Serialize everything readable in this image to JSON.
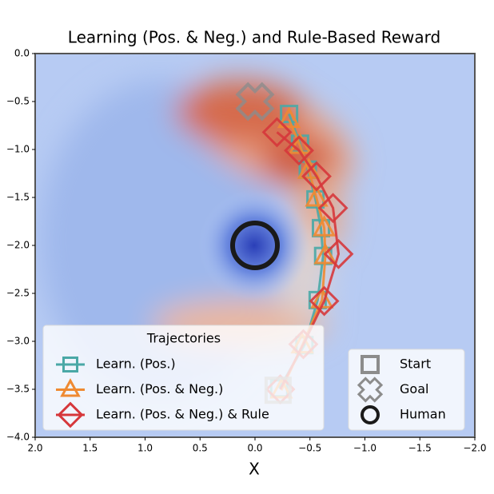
{
  "chart_data": {
    "type": "line",
    "title": "Learning (Pos. & Neg.) and Rule-Based Reward",
    "xlabel": "X",
    "xlim": [
      2,
      -2
    ],
    "ylim": [
      -4,
      0
    ],
    "xticks": [
      {
        "value": 2,
        "label": "2.0"
      },
      {
        "value": 1.5,
        "label": "1.5"
      },
      {
        "value": 1,
        "label": "1.0"
      },
      {
        "value": 0.5,
        "label": "0.5"
      },
      {
        "value": 0,
        "label": "0.0"
      },
      {
        "value": -0.5,
        "label": "−0.5"
      },
      {
        "value": -1,
        "label": "−1.0"
      },
      {
        "value": -1.5,
        "label": "−1.5"
      },
      {
        "value": -2,
        "label": "−2.0"
      }
    ],
    "yticks": [
      {
        "value": 0,
        "label": "0.0"
      },
      {
        "value": -0.5,
        "label": "−0.5"
      },
      {
        "value": -1,
        "label": "−1.0"
      },
      {
        "value": -1.5,
        "label": "−1.5"
      },
      {
        "value": -2,
        "label": "−2.0"
      },
      {
        "value": -2.5,
        "label": "−2.5"
      },
      {
        "value": -3,
        "label": "−3.0"
      },
      {
        "value": -3.5,
        "label": "−3.5"
      },
      {
        "value": -4,
        "label": "−4.0"
      }
    ],
    "legend_title": "Trajectories",
    "legend": "lower left",
    "series": [
      {
        "name": "Learn. (Pos.)",
        "color": "#4aa8a6",
        "marker": "square",
        "x": [
          -0.31,
          -0.41,
          -0.48,
          -0.55,
          -0.6,
          -0.62,
          -0.57,
          -0.45,
          -0.22
        ],
        "y": [
          -0.63,
          -0.94,
          -1.21,
          -1.52,
          -1.82,
          -2.11,
          -2.57,
          -3.04,
          -3.49
        ]
      },
      {
        "name": "Learn. (Pos. & Neg.)",
        "color": "#ef8a32",
        "marker": "triangle",
        "x": [
          -0.31,
          -0.41,
          -0.49,
          -0.56,
          -0.63,
          -0.64,
          -0.61,
          -0.43,
          -0.24
        ],
        "y": [
          -0.69,
          -0.96,
          -1.22,
          -1.51,
          -1.82,
          -2.11,
          -2.57,
          -3.04,
          -3.51
        ]
      },
      {
        "name": "Learn. (Pos. & Neg.) & Rule",
        "color": "#d6373b",
        "marker": "diamond",
        "x": [
          -0.2,
          -0.4,
          -0.56,
          -0.71,
          -0.76,
          -0.63,
          -0.44,
          -0.23
        ],
        "y": [
          -0.82,
          -1.01,
          -1.28,
          -1.61,
          -2.09,
          -2.58,
          -3.03,
          -3.5
        ]
      }
    ],
    "points_legend": "lower right",
    "points": [
      {
        "name": "Start",
        "marker": "square",
        "color": "#8c8c8c",
        "x": -0.21,
        "y": -3.51
      },
      {
        "name": "Goal",
        "marker": "x",
        "color": "#8c8c8c",
        "x": 0,
        "y": -0.5
      },
      {
        "name": "Human",
        "marker": "circle",
        "color": "#1a1a1a",
        "x": 0,
        "y": -2
      }
    ]
  }
}
